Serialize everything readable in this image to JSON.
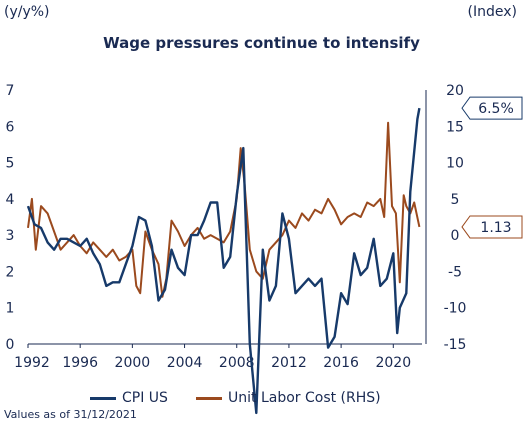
{
  "left_unit": "(y/y%)",
  "right_unit": "(Index)",
  "note": "Values as of 31/12/2021",
  "colors": {
    "cpi": "#173a6a",
    "ulc": "#9b4a1e",
    "axis": "#1a2a52"
  },
  "chart_data": {
    "type": "line",
    "title": "Wage pressures continue to intensify",
    "xlim": [
      1992,
      2022.2
    ],
    "x_ticks": [
      "1992",
      "1996",
      "2000",
      "2004",
      "2008",
      "2012",
      "2016",
      "2020"
    ],
    "y_left": {
      "lim": [
        0,
        7
      ],
      "ticks": [
        "0",
        "1",
        "2",
        "3",
        "4",
        "5",
        "6",
        "7"
      ]
    },
    "y_right": {
      "lim": [
        -15,
        20
      ],
      "ticks": [
        "-15",
        "-10",
        "-5",
        "0",
        "5",
        "10",
        "15",
        "20"
      ]
    },
    "legend": {
      "position": "bottom"
    },
    "series": [
      {
        "name": "CPI US",
        "axis": "left",
        "color": "#173a6a",
        "end_label": "6.5%",
        "points": [
          [
            1992.0,
            3.8
          ],
          [
            1992.5,
            3.3
          ],
          [
            1993.0,
            3.2
          ],
          [
            1993.5,
            2.8
          ],
          [
            1994.0,
            2.6
          ],
          [
            1994.5,
            2.9
          ],
          [
            1995.0,
            2.9
          ],
          [
            1995.5,
            2.8
          ],
          [
            1996.0,
            2.7
          ],
          [
            1996.5,
            2.9
          ],
          [
            1997.0,
            2.5
          ],
          [
            1997.5,
            2.2
          ],
          [
            1998.0,
            1.6
          ],
          [
            1998.5,
            1.7
          ],
          [
            1999.0,
            1.7
          ],
          [
            1999.5,
            2.2
          ],
          [
            2000.0,
            2.7
          ],
          [
            2000.5,
            3.5
          ],
          [
            2001.0,
            3.4
          ],
          [
            2001.5,
            2.7
          ],
          [
            2002.0,
            1.2
          ],
          [
            2002.5,
            1.5
          ],
          [
            2003.0,
            2.6
          ],
          [
            2003.5,
            2.1
          ],
          [
            2004.0,
            1.9
          ],
          [
            2004.5,
            3.0
          ],
          [
            2005.0,
            3.0
          ],
          [
            2005.5,
            3.4
          ],
          [
            2006.0,
            3.9
          ],
          [
            2006.5,
            3.9
          ],
          [
            2007.0,
            2.1
          ],
          [
            2007.5,
            2.4
          ],
          [
            2008.0,
            4.1
          ],
          [
            2008.5,
            5.4
          ],
          [
            2009.0,
            0.0
          ],
          [
            2009.5,
            -1.9
          ],
          [
            2010.0,
            2.6
          ],
          [
            2010.5,
            1.2
          ],
          [
            2011.0,
            1.6
          ],
          [
            2011.5,
            3.6
          ],
          [
            2012.0,
            2.9
          ],
          [
            2012.5,
            1.4
          ],
          [
            2013.0,
            1.6
          ],
          [
            2013.5,
            1.8
          ],
          [
            2014.0,
            1.6
          ],
          [
            2014.5,
            1.8
          ],
          [
            2015.0,
            -0.1
          ],
          [
            2015.5,
            0.2
          ],
          [
            2016.0,
            1.4
          ],
          [
            2016.5,
            1.1
          ],
          [
            2017.0,
            2.5
          ],
          [
            2017.5,
            1.9
          ],
          [
            2018.0,
            2.1
          ],
          [
            2018.5,
            2.9
          ],
          [
            2019.0,
            1.6
          ],
          [
            2019.5,
            1.8
          ],
          [
            2020.0,
            2.5
          ],
          [
            2020.3,
            0.3
          ],
          [
            2020.5,
            1.0
          ],
          [
            2021.0,
            1.4
          ],
          [
            2021.3,
            4.2
          ],
          [
            2021.6,
            5.3
          ],
          [
            2021.85,
            6.2
          ],
          [
            2022.0,
            6.5
          ]
        ]
      },
      {
        "name": "Unit Labor Cost (RHS)",
        "axis": "right",
        "color": "#9b4a1e",
        "end_label": "1.13",
        "points": [
          [
            1992.0,
            1.0
          ],
          [
            1992.3,
            5.0
          ],
          [
            1992.6,
            -2.0
          ],
          [
            1993.0,
            4.0
          ],
          [
            1993.5,
            3.0
          ],
          [
            1994.0,
            0.5
          ],
          [
            1994.5,
            -2.0
          ],
          [
            1995.0,
            -1.0
          ],
          [
            1995.5,
            0.0
          ],
          [
            1996.0,
            -1.5
          ],
          [
            1996.5,
            -2.5
          ],
          [
            1997.0,
            -1.0
          ],
          [
            1997.5,
            -2.0
          ],
          [
            1998.0,
            -3.0
          ],
          [
            1998.5,
            -2.0
          ],
          [
            1999.0,
            -3.5
          ],
          [
            1999.5,
            -3.0
          ],
          [
            2000.0,
            -2.0
          ],
          [
            2000.3,
            -7.0
          ],
          [
            2000.6,
            -8.0
          ],
          [
            2001.0,
            0.5
          ],
          [
            2001.5,
            -2.0
          ],
          [
            2002.0,
            -4.0
          ],
          [
            2002.3,
            -8.5
          ],
          [
            2002.6,
            -6.0
          ],
          [
            2003.0,
            2.0
          ],
          [
            2003.5,
            0.5
          ],
          [
            2004.0,
            -1.5
          ],
          [
            2004.5,
            0.0
          ],
          [
            2005.0,
            1.0
          ],
          [
            2005.5,
            -0.5
          ],
          [
            2006.0,
            0.0
          ],
          [
            2006.5,
            -0.5
          ],
          [
            2007.0,
            -1.0
          ],
          [
            2007.5,
            0.5
          ],
          [
            2008.0,
            5.0
          ],
          [
            2008.3,
            12.0
          ],
          [
            2008.6,
            7.0
          ],
          [
            2009.0,
            -2.0
          ],
          [
            2009.5,
            -5.0
          ],
          [
            2010.0,
            -6.0
          ],
          [
            2010.5,
            -2.0
          ],
          [
            2011.0,
            -1.0
          ],
          [
            2011.5,
            0.0
          ],
          [
            2012.0,
            2.0
          ],
          [
            2012.5,
            1.0
          ],
          [
            2013.0,
            3.0
          ],
          [
            2013.5,
            2.0
          ],
          [
            2014.0,
            3.5
          ],
          [
            2014.5,
            3.0
          ],
          [
            2015.0,
            5.0
          ],
          [
            2015.5,
            3.5
          ],
          [
            2016.0,
            1.5
          ],
          [
            2016.5,
            2.5
          ],
          [
            2017.0,
            3.0
          ],
          [
            2017.5,
            2.5
          ],
          [
            2018.0,
            4.5
          ],
          [
            2018.5,
            4.0
          ],
          [
            2019.0,
            5.0
          ],
          [
            2019.3,
            2.5
          ],
          [
            2019.6,
            15.5
          ],
          [
            2019.9,
            4.0
          ],
          [
            2020.2,
            3.0
          ],
          [
            2020.5,
            -6.5
          ],
          [
            2020.8,
            5.5
          ],
          [
            2021.0,
            4.0
          ],
          [
            2021.3,
            3.0
          ],
          [
            2021.6,
            4.5
          ],
          [
            2022.0,
            1.13
          ]
        ]
      }
    ]
  }
}
